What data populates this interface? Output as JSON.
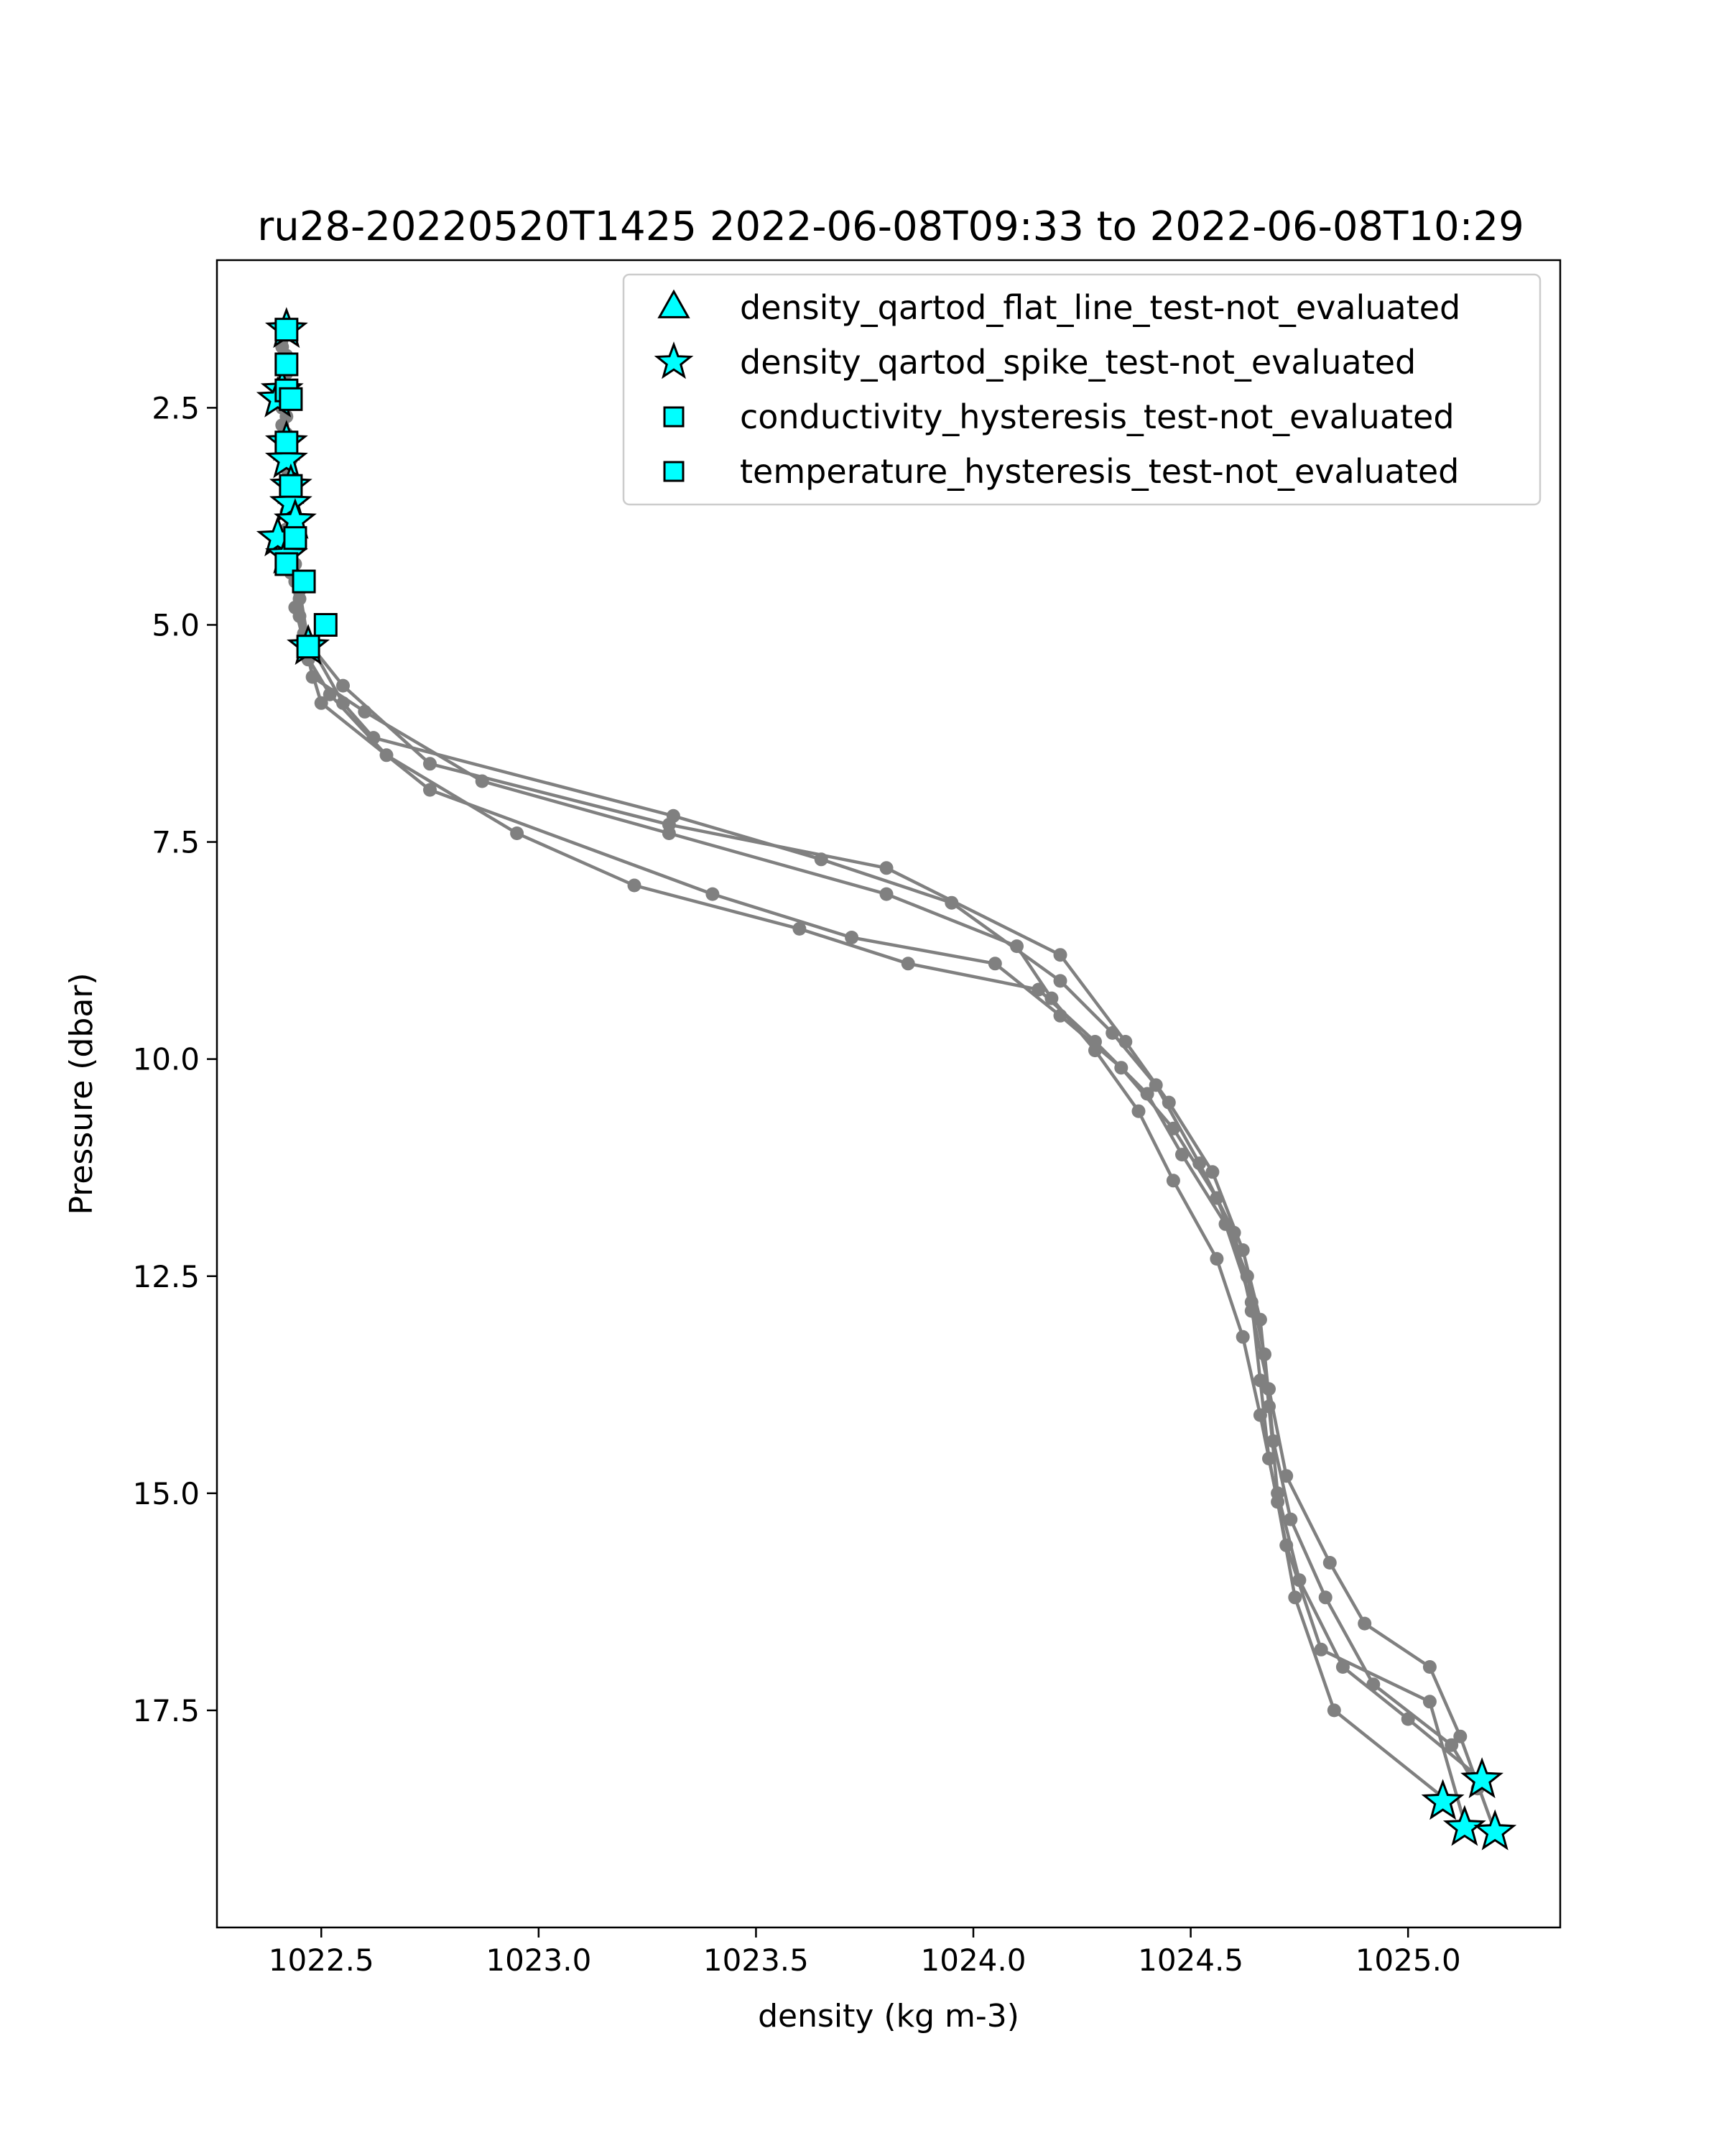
{
  "chart_data": {
    "type": "scatter",
    "title": "ru28-20220520T1425 2022-06-08T09:33 to 2022-06-08T10:29",
    "xlabel": "density (kg m-3)",
    "ylabel": "Pressure (dbar)",
    "xlim": [
      1022.26,
      1025.35
    ],
    "ylim": [
      20.0,
      0.8
    ],
    "y_inverted": true,
    "grid": false,
    "legend_position": "top-right",
    "xticks": [
      1022.5,
      1023.0,
      1023.5,
      1024.0,
      1024.5,
      1025.0
    ],
    "xtick_labels": [
      "1022.5",
      "1023.0",
      "1023.5",
      "1024.0",
      "1024.5",
      "1025.0"
    ],
    "yticks": [
      2.5,
      5.0,
      7.5,
      10.0,
      12.5,
      15.0,
      17.5
    ],
    "ytick_labels": [
      "2.5",
      "5.0",
      "7.5",
      "10.0",
      "12.5",
      "15.0",
      "17.5"
    ],
    "profile_color": "#808080",
    "flag_face_color": "#00ffff",
    "flag_edge_color": "#000000",
    "profiles": [
      {
        "points": [
          [
            1022.42,
            1.6
          ],
          [
            1022.42,
            2.1
          ],
          [
            1022.42,
            2.6
          ],
          [
            1022.43,
            3.1
          ],
          [
            1022.43,
            3.6
          ],
          [
            1022.44,
            4.1
          ],
          [
            1022.45,
            4.6
          ],
          [
            1022.47,
            5.2
          ],
          [
            1022.55,
            5.7
          ],
          [
            1022.75,
            6.6
          ],
          [
            1023.3,
            7.3
          ],
          [
            1023.8,
            7.8
          ],
          [
            1024.2,
            8.8
          ],
          [
            1024.35,
            9.8
          ],
          [
            1024.45,
            10.5
          ],
          [
            1024.55,
            11.3
          ],
          [
            1024.62,
            12.2
          ],
          [
            1024.66,
            13.0
          ],
          [
            1024.68,
            14.0
          ],
          [
            1024.7,
            15.0
          ],
          [
            1024.75,
            16.0
          ],
          [
            1024.85,
            17.0
          ],
          [
            1025.0,
            17.6
          ],
          [
            1025.17,
            18.3
          ]
        ]
      },
      {
        "points": [
          [
            1022.41,
            2.0
          ],
          [
            1022.41,
            2.5
          ],
          [
            1022.42,
            3.0
          ],
          [
            1022.42,
            3.5
          ],
          [
            1022.43,
            4.0
          ],
          [
            1022.44,
            4.5
          ],
          [
            1022.46,
            5.1
          ],
          [
            1022.55,
            5.9
          ],
          [
            1022.62,
            6.3
          ],
          [
            1023.31,
            7.2
          ],
          [
            1023.65,
            7.7
          ],
          [
            1023.95,
            8.2
          ],
          [
            1024.2,
            9.1
          ],
          [
            1024.32,
            9.7
          ],
          [
            1024.42,
            10.3
          ],
          [
            1024.52,
            11.2
          ],
          [
            1024.6,
            12.0
          ],
          [
            1024.64,
            12.9
          ],
          [
            1024.68,
            13.8
          ],
          [
            1024.72,
            14.8
          ],
          [
            1024.82,
            15.8
          ],
          [
            1024.9,
            16.5
          ],
          [
            1025.05,
            17.0
          ],
          [
            1025.12,
            17.8
          ],
          [
            1025.2,
            18.9
          ]
        ]
      },
      {
        "points": [
          [
            1022.42,
            1.9
          ],
          [
            1022.41,
            2.4
          ],
          [
            1022.41,
            2.9
          ],
          [
            1022.42,
            3.4
          ],
          [
            1022.42,
            3.9
          ],
          [
            1022.43,
            4.4
          ],
          [
            1022.45,
            4.9
          ],
          [
            1022.48,
            5.6
          ],
          [
            1022.6,
            6.0
          ],
          [
            1022.87,
            6.8
          ],
          [
            1023.3,
            7.4
          ],
          [
            1023.8,
            8.1
          ],
          [
            1024.1,
            8.7
          ],
          [
            1024.18,
            9.3
          ],
          [
            1024.28,
            9.9
          ],
          [
            1024.38,
            10.6
          ],
          [
            1024.46,
            11.4
          ],
          [
            1024.56,
            12.3
          ],
          [
            1024.62,
            13.2
          ],
          [
            1024.66,
            14.1
          ],
          [
            1024.7,
            15.1
          ],
          [
            1024.74,
            16.2
          ],
          [
            1024.83,
            17.5
          ],
          [
            1025.08,
            18.5
          ]
        ]
      },
      {
        "points": [
          [
            1022.41,
            2.2
          ],
          [
            1022.41,
            2.7
          ],
          [
            1022.42,
            3.2
          ],
          [
            1022.42,
            3.7
          ],
          [
            1022.43,
            4.2
          ],
          [
            1022.45,
            4.7
          ],
          [
            1022.46,
            5.3
          ],
          [
            1022.52,
            5.8
          ],
          [
            1022.65,
            6.5
          ],
          [
            1022.95,
            7.4
          ],
          [
            1023.22,
            8.0
          ],
          [
            1023.6,
            8.5
          ],
          [
            1023.85,
            8.9
          ],
          [
            1024.15,
            9.2
          ],
          [
            1024.28,
            9.8
          ],
          [
            1024.4,
            10.4
          ],
          [
            1024.48,
            11.1
          ],
          [
            1024.58,
            11.9
          ],
          [
            1024.64,
            12.8
          ],
          [
            1024.66,
            13.7
          ],
          [
            1024.68,
            14.6
          ],
          [
            1024.72,
            15.6
          ],
          [
            1024.8,
            16.8
          ],
          [
            1025.05,
            17.4
          ],
          [
            1025.13,
            18.8
          ]
        ]
      },
      {
        "points": [
          [
            1022.41,
            1.8
          ],
          [
            1022.42,
            2.3
          ],
          [
            1022.42,
            2.8
          ],
          [
            1022.43,
            3.3
          ],
          [
            1022.43,
            3.8
          ],
          [
            1022.44,
            4.3
          ],
          [
            1022.44,
            4.8
          ],
          [
            1022.47,
            5.4
          ],
          [
            1022.5,
            5.9
          ],
          [
            1022.75,
            6.9
          ],
          [
            1023.4,
            8.1
          ],
          [
            1023.72,
            8.6
          ],
          [
            1024.05,
            8.9
          ],
          [
            1024.2,
            9.5
          ],
          [
            1024.34,
            10.1
          ],
          [
            1024.46,
            10.8
          ],
          [
            1024.56,
            11.6
          ],
          [
            1024.63,
            12.5
          ],
          [
            1024.67,
            13.4
          ],
          [
            1024.69,
            14.4
          ],
          [
            1024.73,
            15.3
          ],
          [
            1024.81,
            16.2
          ],
          [
            1024.92,
            17.2
          ],
          [
            1025.1,
            17.9
          ],
          [
            1025.16,
            18.4
          ]
        ]
      }
    ],
    "flags": [
      {
        "name": "density_qartod_flat_line_test-not_evaluated",
        "marker": "triangle",
        "points": []
      },
      {
        "name": "density_qartod_spike_test-not_evaluated",
        "marker": "star",
        "points": [
          [
            1022.42,
            1.6
          ],
          [
            1022.41,
            2.3
          ],
          [
            1022.4,
            2.4
          ],
          [
            1022.42,
            2.9
          ],
          [
            1022.42,
            3.1
          ],
          [
            1022.43,
            3.4
          ],
          [
            1022.43,
            3.6
          ],
          [
            1022.44,
            3.8
          ],
          [
            1022.4,
            4.0
          ],
          [
            1022.42,
            4.2
          ],
          [
            1022.47,
            5.25
          ],
          [
            1025.17,
            18.3
          ],
          [
            1025.08,
            18.55
          ],
          [
            1025.13,
            18.85
          ],
          [
            1025.2,
            18.9
          ]
        ]
      },
      {
        "name": "conductivity_hysteresis_test-not_evaluated",
        "marker": "square",
        "points": [
          [
            1022.42,
            1.6
          ],
          [
            1022.42,
            2.0
          ],
          [
            1022.42,
            2.3
          ],
          [
            1022.43,
            2.4
          ],
          [
            1022.42,
            2.9
          ],
          [
            1022.43,
            3.4
          ],
          [
            1022.44,
            4.0
          ],
          [
            1022.42,
            4.3
          ],
          [
            1022.46,
            4.5
          ],
          [
            1022.51,
            5.0
          ],
          [
            1022.47,
            5.25
          ]
        ]
      },
      {
        "name": "temperature_hysteresis_test-not_evaluated",
        "marker": "square",
        "points": []
      }
    ]
  }
}
